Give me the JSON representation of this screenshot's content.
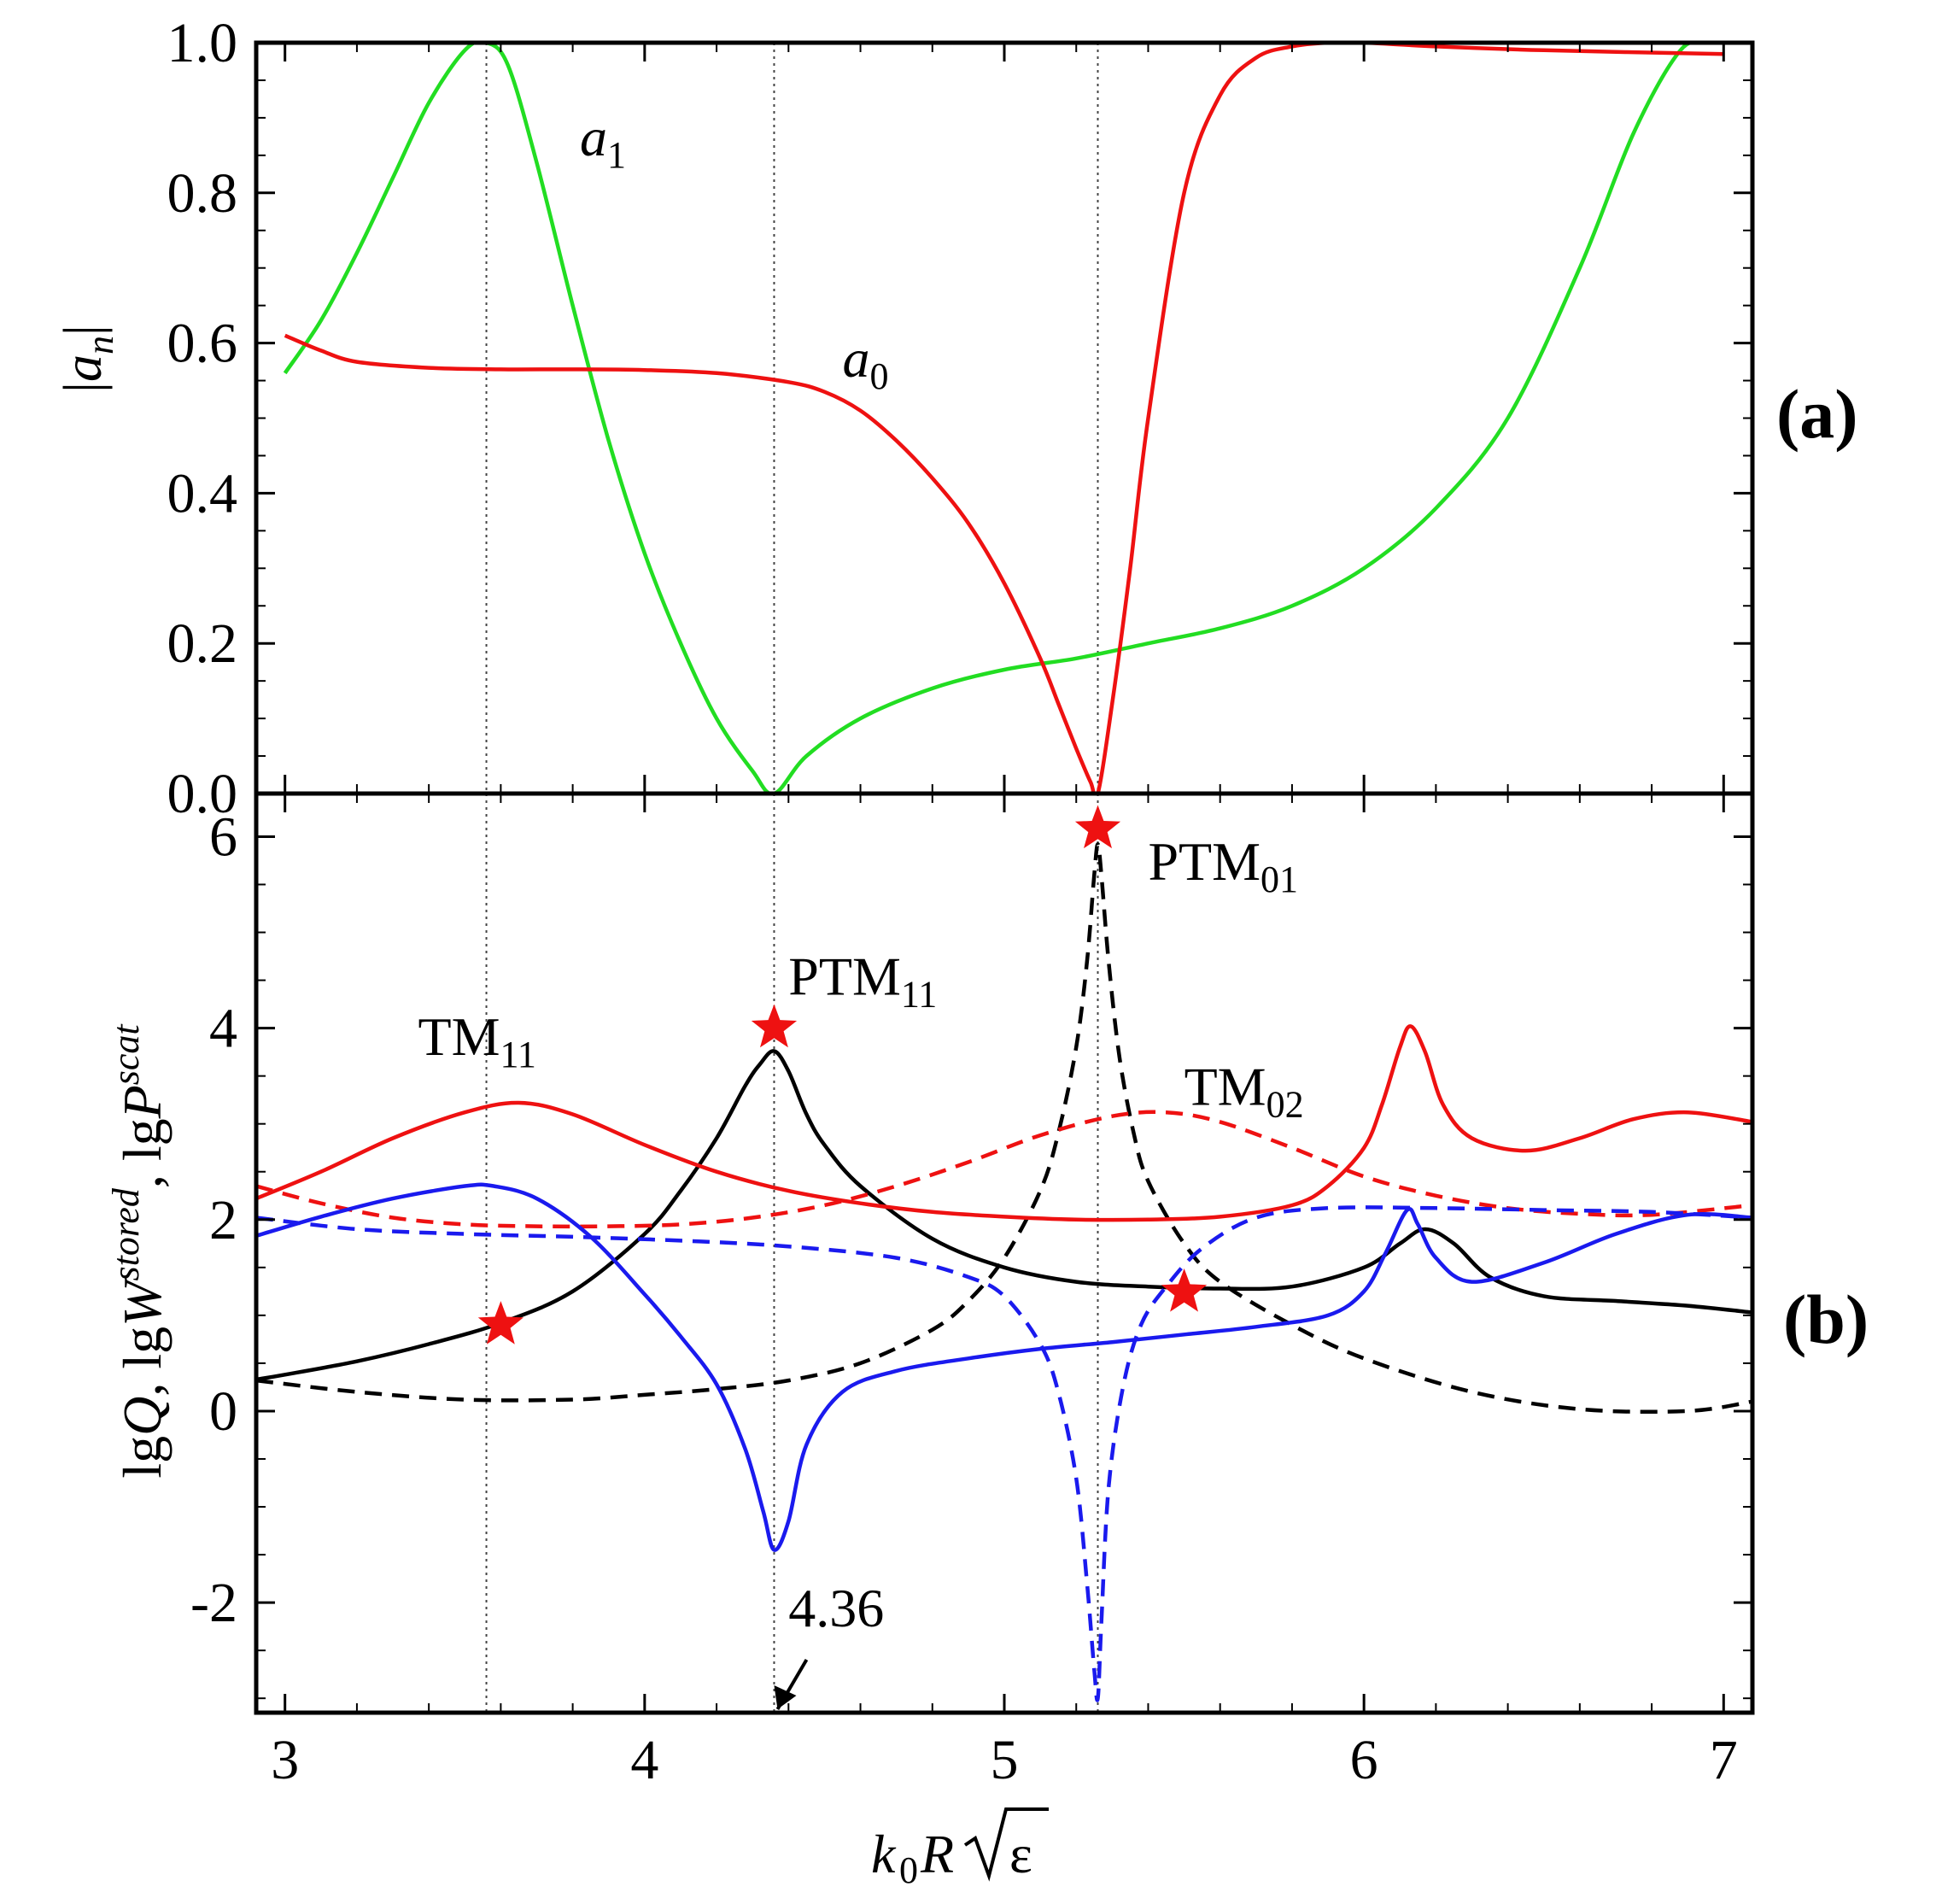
{
  "chart_data": [
    {
      "panel_label": "(a)",
      "type": "line",
      "title": "",
      "ylabel": "|an|",
      "ylabel_main": "a",
      "ylabel_sub": "n",
      "xlim": [
        2.92,
        7.08
      ],
      "ylim": [
        0.0,
        1.0
      ],
      "x_ticks": [
        3,
        4,
        5,
        6,
        7
      ],
      "y_ticks": [
        0.0,
        0.2,
        0.4,
        0.6,
        0.8,
        1.0
      ],
      "y_tick_labels": [
        "0.0",
        "0.2",
        "0.4",
        "0.6",
        "0.8",
        "1.0"
      ],
      "grid": false,
      "reference_lines_x": [
        3.56,
        4.36,
        5.26
      ],
      "series": [
        {
          "name": "a1",
          "label_main": "a",
          "label_sub": "1",
          "color": "#22dd22",
          "dash": false,
          "label_pos": [
            3.82,
            0.85
          ],
          "x": [
            3.0,
            3.1,
            3.2,
            3.3,
            3.4,
            3.5,
            3.56,
            3.62,
            3.7,
            3.8,
            3.9,
            4.0,
            4.1,
            4.2,
            4.3,
            4.36,
            4.45,
            4.6,
            4.8,
            5.0,
            5.2,
            5.4,
            5.6,
            5.8,
            6.0,
            6.2,
            6.4,
            6.6,
            6.75,
            6.88,
            6.96,
            7.0
          ],
          "y": [
            0.56,
            0.63,
            0.72,
            0.82,
            0.92,
            0.99,
            1.0,
            0.97,
            0.84,
            0.65,
            0.47,
            0.32,
            0.2,
            0.1,
            0.03,
            0.0,
            0.05,
            0.1,
            0.14,
            0.165,
            0.18,
            0.2,
            0.22,
            0.25,
            0.3,
            0.38,
            0.5,
            0.7,
            0.88,
            0.99,
            1.0,
            1.0
          ]
        },
        {
          "name": "a0",
          "label_main": "a",
          "label_sub": "0",
          "color": "#ee1111",
          "dash": false,
          "label_pos": [
            4.55,
            0.555
          ],
          "x": [
            3.0,
            3.1,
            3.2,
            3.4,
            3.6,
            3.8,
            4.0,
            4.2,
            4.4,
            4.5,
            4.6,
            4.7,
            4.8,
            4.9,
            5.0,
            5.1,
            5.15,
            5.2,
            5.24,
            5.26,
            5.3,
            5.35,
            5.4,
            5.5,
            5.6,
            5.7,
            5.8,
            5.9,
            6.0,
            6.2,
            6.5,
            7.0
          ],
          "y": [
            0.61,
            0.59,
            0.575,
            0.567,
            0.565,
            0.565,
            0.564,
            0.56,
            0.548,
            0.535,
            0.51,
            0.47,
            0.42,
            0.36,
            0.28,
            0.18,
            0.12,
            0.06,
            0.015,
            0.0,
            0.12,
            0.3,
            0.5,
            0.8,
            0.93,
            0.98,
            0.995,
            1.0,
            1.0,
            0.995,
            0.99,
            0.985
          ]
        }
      ]
    },
    {
      "panel_label": "(b)",
      "type": "line",
      "title": "",
      "ylabel": "lgQ, lgW^stored, lgP^scat",
      "xlabel": "k0R√ε",
      "xlim": [
        2.92,
        7.08
      ],
      "ylim": [
        -3.15,
        6.45
      ],
      "x_ticks": [
        3,
        4,
        5,
        6,
        7
      ],
      "x_tick_labels": [
        "3",
        "4",
        "5",
        "6",
        "7"
      ],
      "y_ticks": [
        -2,
        0,
        2,
        4,
        6
      ],
      "y_tick_labels": [
        "-2",
        "0",
        "2",
        "4",
        "6"
      ],
      "grid": false,
      "reference_lines_x": [
        3.56,
        4.36,
        5.26
      ],
      "series": [
        {
          "name": "black solid",
          "color": "#000000",
          "dash": false,
          "x": [
            2.92,
            3.0,
            3.2,
            3.4,
            3.6,
            3.8,
            4.0,
            4.1,
            4.2,
            4.28,
            4.32,
            4.36,
            4.4,
            4.45,
            4.5,
            4.6,
            4.8,
            5.0,
            5.2,
            5.4,
            5.6,
            5.8,
            6.0,
            6.1,
            6.17,
            6.25,
            6.35,
            6.5,
            6.7,
            6.9,
            7.08
          ],
          "y": [
            0.33,
            0.38,
            0.52,
            0.7,
            0.92,
            1.25,
            1.85,
            2.3,
            2.85,
            3.4,
            3.62,
            3.76,
            3.55,
            3.1,
            2.78,
            2.35,
            1.8,
            1.5,
            1.35,
            1.3,
            1.28,
            1.3,
            1.5,
            1.75,
            1.9,
            1.75,
            1.4,
            1.2,
            1.15,
            1.1,
            1.03
          ]
        },
        {
          "name": "black dashed",
          "color": "#000000",
          "dash": true,
          "x": [
            2.92,
            3.2,
            3.5,
            3.8,
            4.0,
            4.2,
            4.4,
            4.6,
            4.8,
            4.9,
            5.0,
            5.1,
            5.15,
            5.2,
            5.23,
            5.25,
            5.26,
            5.27,
            5.29,
            5.32,
            5.36,
            5.4,
            5.5,
            5.6,
            5.8,
            6.0,
            6.3,
            6.6,
            6.9,
            7.08
          ],
          "y": [
            0.32,
            0.2,
            0.12,
            0.12,
            0.17,
            0.23,
            0.32,
            0.5,
            0.85,
            1.15,
            1.6,
            2.3,
            2.9,
            3.8,
            4.7,
            5.6,
            5.92,
            5.6,
            4.7,
            3.7,
            2.9,
            2.4,
            1.75,
            1.35,
            0.9,
            0.55,
            0.2,
            0.02,
            0.0,
            0.1
          ]
        },
        {
          "name": "red solid",
          "color": "#ee1111",
          "dash": false,
          "x": [
            2.92,
            3.1,
            3.3,
            3.5,
            3.65,
            3.8,
            4.0,
            4.2,
            4.4,
            4.6,
            4.8,
            5.0,
            5.2,
            5.4,
            5.6,
            5.8,
            5.9,
            6.0,
            6.05,
            6.1,
            6.13,
            6.17,
            6.22,
            6.3,
            6.45,
            6.6,
            6.75,
            6.9,
            7.08
          ],
          "y": [
            2.22,
            2.5,
            2.85,
            3.12,
            3.22,
            3.1,
            2.78,
            2.5,
            2.3,
            2.17,
            2.08,
            2.03,
            2.0,
            2.0,
            2.03,
            2.15,
            2.35,
            2.75,
            3.2,
            3.8,
            4.02,
            3.75,
            3.2,
            2.85,
            2.72,
            2.85,
            3.05,
            3.12,
            3.02
          ]
        },
        {
          "name": "red dashed",
          "color": "#ee1111",
          "dash": true,
          "x": [
            2.92,
            3.1,
            3.3,
            3.5,
            3.7,
            3.9,
            4.1,
            4.3,
            4.5,
            4.7,
            4.9,
            5.1,
            5.3,
            5.45,
            5.6,
            5.8,
            6.0,
            6.2,
            6.4,
            6.6,
            6.8,
            7.08
          ],
          "y": [
            2.35,
            2.17,
            2.02,
            1.95,
            1.93,
            1.93,
            1.95,
            2.02,
            2.15,
            2.35,
            2.6,
            2.88,
            3.08,
            3.12,
            3.02,
            2.75,
            2.45,
            2.25,
            2.12,
            2.06,
            2.05,
            2.15
          ]
        },
        {
          "name": "blue solid",
          "color": "#1a1aee",
          "dash": false,
          "x": [
            2.92,
            3.1,
            3.3,
            3.5,
            3.58,
            3.7,
            3.85,
            4.0,
            4.1,
            4.2,
            4.28,
            4.33,
            4.36,
            4.4,
            4.45,
            4.55,
            4.7,
            4.9,
            5.1,
            5.3,
            5.5,
            5.7,
            5.9,
            6.0,
            6.06,
            6.12,
            6.15,
            6.2,
            6.3,
            6.5,
            6.7,
            6.9,
            7.08
          ],
          "y": [
            1.83,
            2.03,
            2.22,
            2.35,
            2.35,
            2.22,
            1.82,
            1.22,
            0.78,
            0.28,
            -0.4,
            -1.05,
            -1.45,
            -1.15,
            -0.35,
            0.2,
            0.42,
            0.55,
            0.65,
            0.72,
            0.8,
            0.88,
            1.0,
            1.25,
            1.65,
            2.1,
            1.95,
            1.6,
            1.35,
            1.55,
            1.85,
            2.05,
            2.02
          ]
        },
        {
          "name": "blue dashed",
          "color": "#1a1aee",
          "dash": true,
          "x": [
            2.92,
            3.2,
            3.5,
            3.8,
            4.1,
            4.4,
            4.7,
            4.9,
            5.0,
            5.1,
            5.15,
            5.2,
            5.23,
            5.25,
            5.26,
            5.27,
            5.29,
            5.33,
            5.38,
            5.45,
            5.55,
            5.7,
            5.9,
            6.2,
            6.5,
            6.8,
            7.08
          ],
          "y": [
            2.02,
            1.9,
            1.85,
            1.82,
            1.78,
            1.72,
            1.6,
            1.4,
            1.2,
            0.7,
            0.2,
            -0.7,
            -1.8,
            -2.7,
            -3.0,
            -2.2,
            -0.8,
            0.25,
            0.9,
            1.3,
            1.7,
            2.02,
            2.12,
            2.12,
            2.1,
            2.08,
            2.02
          ]
        }
      ],
      "markers": [
        {
          "name": "star-ptm01",
          "x": 5.26,
          "y": 6.08,
          "color": "#ee1111"
        },
        {
          "name": "star-ptm11",
          "x": 4.36,
          "y": 4.0,
          "color": "#ee1111"
        },
        {
          "name": "star-tm11",
          "x": 3.6,
          "y": 0.9,
          "color": "#ee1111"
        },
        {
          "name": "star-tm02",
          "x": 5.5,
          "y": 1.24,
          "color": "#ee1111"
        }
      ],
      "annotations": [
        {
          "name": "label-ptm01",
          "main": "PTM",
          "sub": "01",
          "x": 5.4,
          "y": 5.55
        },
        {
          "name": "label-ptm11",
          "main": "PTM",
          "sub": "11",
          "x": 4.4,
          "y": 4.35
        },
        {
          "name": "label-tm11",
          "main": "TM",
          "sub": "11",
          "x": 3.37,
          "y": 3.72
        },
        {
          "name": "label-tm02",
          "main": "TM",
          "sub": "02",
          "x": 5.5,
          "y": 3.2
        }
      ],
      "arrow_annotation": {
        "text": "4.36",
        "x": 4.36,
        "y": -3.15,
        "text_pos": [
          4.4,
          -2.25
        ]
      }
    }
  ]
}
